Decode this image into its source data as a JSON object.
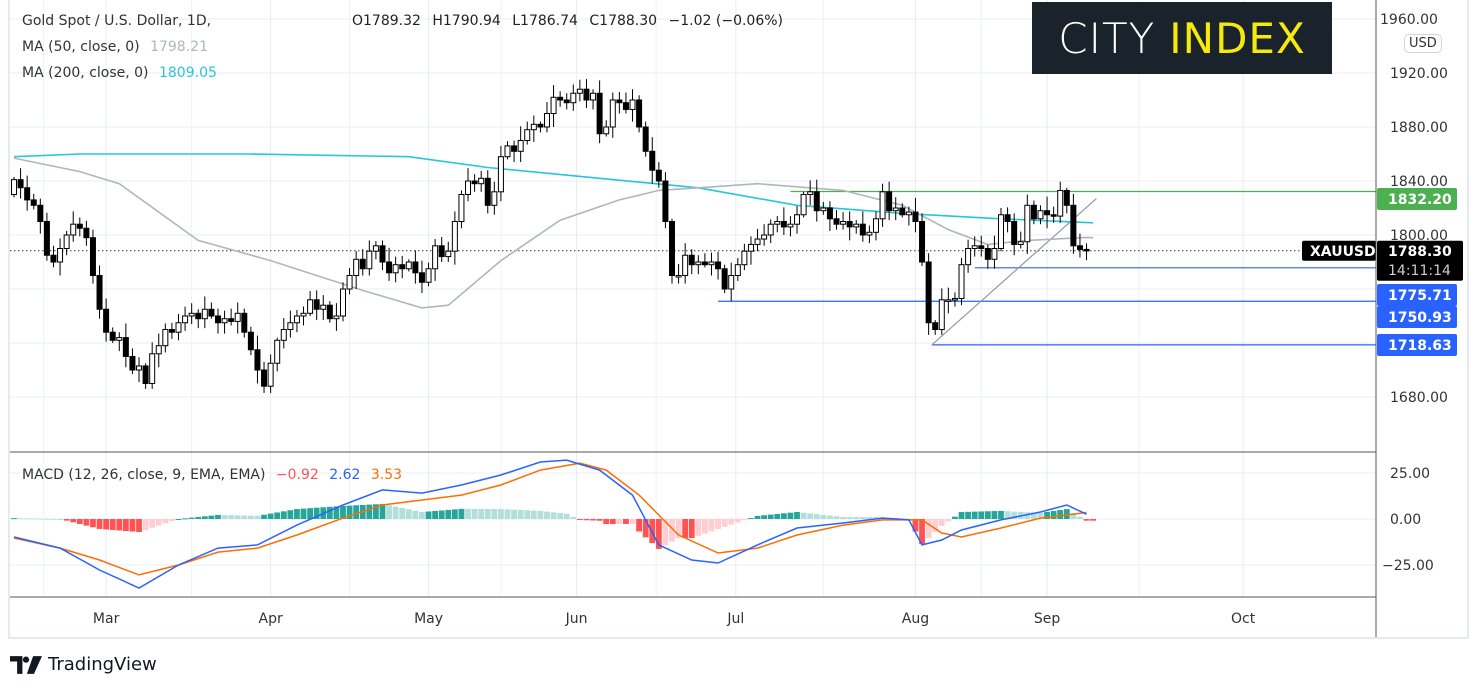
{
  "header": {
    "symbol_title": "Gold Spot / U.S. Dollar, 1D,",
    "ohlc": {
      "open": "O1789.32",
      "high": "H1790.94",
      "low": "L1786.74",
      "close": "C1788.30",
      "change": "−1.02 (−0.06%)"
    },
    "ma50_label": "MA (50, close, 0)",
    "ma50_value": "1798.21",
    "ma200_label": "MA (200, close, 0)",
    "ma200_value": "1809.05",
    "macd_label": "MACD (12, 26, close, 9, EMA, EMA)",
    "macd_hist_value": "−0.92",
    "macd_value": "2.62",
    "macd_signal_value": "3.53"
  },
  "logo": {
    "word1": "CITY",
    "word2": "INDEX"
  },
  "currency_button": "USD",
  "brand": "TradingView",
  "colors": {
    "ma50": "#b2b5be",
    "ma200": "#26c6da",
    "macd": "#2962ff",
    "signal": "#ff6d00",
    "green_level": "#4caf50",
    "blue_level": "#2962ff",
    "hist_pos_up": "#26a69a",
    "hist_pos_down": "#b2dfdb",
    "hist_neg_down": "#ff5252",
    "hist_neg_up": "#ffcdd2"
  },
  "chart_data": [
    {
      "type": "candlestick",
      "title": "Gold Spot / U.S. Dollar, 1D",
      "price_ticks": [
        "1920.00",
        "1880.00",
        "1840.00",
        "1800.00",
        "1680.00"
      ],
      "price_tick_values": [
        1920,
        1880,
        1840,
        1800,
        1760,
        1720,
        1680
      ],
      "top_tick_partial": "1960.00",
      "ylim": [
        1636,
        1974
      ],
      "month_labels": [
        {
          "label": "Mar",
          "bar": 14
        },
        {
          "label": "Apr",
          "bar": 39
        },
        {
          "label": "May",
          "bar": 63
        },
        {
          "label": "Jun",
          "bar": 85.5
        },
        {
          "label": "Jul",
          "bar": 109.7
        },
        {
          "label": "Aug",
          "bar": 137
        },
        {
          "label": "Sep",
          "bar": 157
        },
        {
          "label": "Oct",
          "bar": 186.8
        }
      ],
      "closes": [
        1841,
        1835,
        1826,
        1822,
        1810,
        1785,
        1780,
        1790,
        1800,
        1808,
        1805,
        1798,
        1770,
        1745,
        1728,
        1722,
        1724,
        1710,
        1700,
        1703,
        1690,
        1712,
        1718,
        1730,
        1728,
        1735,
        1740,
        1742,
        1738,
        1745,
        1740,
        1735,
        1738,
        1736,
        1742,
        1728,
        1715,
        1700,
        1688,
        1705,
        1722,
        1730,
        1735,
        1740,
        1742,
        1752,
        1745,
        1748,
        1738,
        1740,
        1760,
        1770,
        1782,
        1775,
        1788,
        1792,
        1780,
        1772,
        1778,
        1775,
        1780,
        1772,
        1765,
        1775,
        1792,
        1784,
        1788,
        1810,
        1830,
        1840,
        1838,
        1842,
        1822,
        1832,
        1858,
        1866,
        1862,
        1870,
        1878,
        1882,
        1880,
        1890,
        1902,
        1900,
        1898,
        1905,
        1908,
        1900,
        1905,
        1875,
        1880,
        1900,
        1898,
        1893,
        1900,
        1880,
        1862,
        1848,
        1840,
        1810,
        1770,
        1770,
        1785,
        1778,
        1780,
        1778,
        1780,
        1775,
        1760,
        1770,
        1778,
        1788,
        1793,
        1797,
        1800,
        1808,
        1810,
        1806,
        1808,
        1815,
        1830,
        1832,
        1818,
        1820,
        1812,
        1808,
        1810,
        1806,
        1808,
        1800,
        1802,
        1812,
        1832,
        1818,
        1820,
        1815,
        1817,
        1810,
        1780,
        1735,
        1730,
        1752,
        1752,
        1753,
        1778,
        1790,
        1792,
        1790,
        1782,
        1790,
        1815,
        1810,
        1793,
        1795,
        1822,
        1812,
        1818,
        1815,
        1814,
        1833,
        1822,
        1792,
        1789.32,
        1788.3
      ],
      "first_open": 1830,
      "ma50": [
        [
          0,
          1857
        ],
        [
          10,
          1847
        ],
        [
          16,
          1838
        ],
        [
          28,
          1796
        ],
        [
          39,
          1781
        ],
        [
          53,
          1759
        ],
        [
          62,
          1746
        ],
        [
          66,
          1748
        ],
        [
          74,
          1781
        ],
        [
          83,
          1811
        ],
        [
          92,
          1826
        ],
        [
          98,
          1833
        ],
        [
          104,
          1835
        ],
        [
          113,
          1838
        ],
        [
          126,
          1833
        ],
        [
          135,
          1822
        ],
        [
          142,
          1804
        ],
        [
          148,
          1793
        ],
        [
          154,
          1796
        ],
        [
          163,
          1798.21
        ],
        [
          164,
          1798
        ]
      ],
      "ma200": [
        [
          0,
          1858
        ],
        [
          10,
          1860
        ],
        [
          36,
          1860
        ],
        [
          60,
          1858
        ],
        [
          72,
          1850
        ],
        [
          89,
          1842
        ],
        [
          104,
          1835
        ],
        [
          119,
          1822
        ],
        [
          135,
          1816
        ],
        [
          150,
          1812
        ],
        [
          164,
          1809.05
        ]
      ],
      "levels": [
        {
          "price": 1832.2,
          "label": "1832.20",
          "color": "green",
          "from_bar": 118
        },
        {
          "price": 1775.71,
          "label": "1775.71",
          "color": "blue",
          "from_bar": 146
        },
        {
          "price": 1750.93,
          "label": "1750.93",
          "color": "blue",
          "from_bar": 107
        },
        {
          "price": 1718.63,
          "label": "1718.63",
          "color": "blue",
          "from_bar": 139.5
        }
      ],
      "trendline": [
        [
          139.5,
          1718.63
        ],
        [
          164.5,
          1827
        ]
      ],
      "last_price": {
        "symbol": "XAUUSD",
        "price": "1788.30",
        "countdown": "14:11:14",
        "value": 1788.3
      }
    },
    {
      "type": "line",
      "title": "MACD (12, 26, close, 9, EMA, EMA)",
      "ticks": [
        "25.00",
        "0.00",
        "−25.00"
      ],
      "tick_values": [
        25,
        0,
        -25
      ],
      "ylim": [
        -42,
        36
      ],
      "macd": [
        [
          0,
          -9.8
        ],
        [
          7,
          -15.8
        ],
        [
          13,
          -27.7
        ],
        [
          19,
          -37.5
        ],
        [
          25,
          -25
        ],
        [
          31,
          -15.8
        ],
        [
          37,
          -14.1
        ],
        [
          43,
          -3.3
        ],
        [
          50,
          7.6
        ],
        [
          56,
          15.8
        ],
        [
          62,
          14.1
        ],
        [
          68,
          18.5
        ],
        [
          74,
          23.9
        ],
        [
          80,
          31
        ],
        [
          84,
          32
        ],
        [
          89,
          26.6
        ],
        [
          94,
          13
        ],
        [
          98,
          -14.1
        ],
        [
          103,
          -22.3
        ],
        [
          107,
          -23.9
        ],
        [
          113,
          -14.1
        ],
        [
          119,
          -4.9
        ],
        [
          126,
          -2.2
        ],
        [
          132,
          0.5
        ],
        [
          136,
          -0.5
        ],
        [
          138,
          -14.1
        ],
        [
          141,
          -11.4
        ],
        [
          144,
          -6
        ],
        [
          150,
          -0.5
        ],
        [
          156,
          3.8
        ],
        [
          160,
          7.6
        ],
        [
          163,
          2.62
        ]
      ],
      "signal": [
        [
          0,
          -10.3
        ],
        [
          7,
          -15.8
        ],
        [
          13,
          -22.3
        ],
        [
          19,
          -30.4
        ],
        [
          25,
          -25
        ],
        [
          31,
          -18
        ],
        [
          37,
          -15.8
        ],
        [
          43,
          -8.7
        ],
        [
          50,
          0.5
        ],
        [
          56,
          7.6
        ],
        [
          62,
          10.3
        ],
        [
          68,
          13
        ],
        [
          74,
          18.5
        ],
        [
          80,
          26.6
        ],
        [
          86,
          30.4
        ],
        [
          90,
          26.6
        ],
        [
          95,
          13
        ],
        [
          101,
          -8.7
        ],
        [
          107,
          -18.5
        ],
        [
          113,
          -15.8
        ],
        [
          119,
          -8.7
        ],
        [
          126,
          -3.3
        ],
        [
          132,
          -0.5
        ],
        [
          138,
          -0.5
        ],
        [
          141,
          -7.6
        ],
        [
          144,
          -9.8
        ],
        [
          150,
          -4.9
        ],
        [
          156,
          0.5
        ],
        [
          163,
          3.53
        ]
      ]
    }
  ]
}
